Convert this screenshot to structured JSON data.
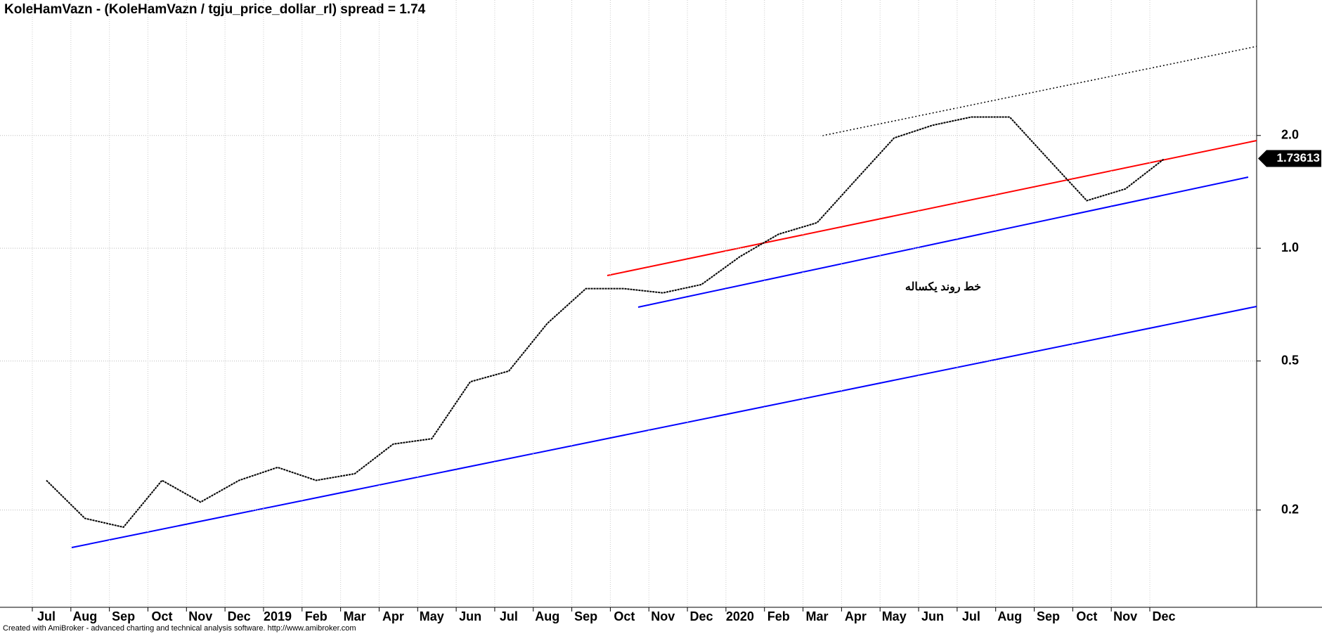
{
  "chart_data": {
    "type": "line",
    "title": "KoleHamVazn - (KoleHamVazn / tgju_price_dollar_rl) spread = 1.74",
    "footer": "Created with AmiBroker - advanced charting and technical analysis software. http://www.amibroker.com",
    "annotation": "خط روند یکساله",
    "categories": [
      "Jul",
      "Aug",
      "Sep",
      "Oct",
      "Nov",
      "Dec",
      "2019",
      "Feb",
      "Mar",
      "Apr",
      "May",
      "Jun",
      "Jul",
      "Aug",
      "Sep",
      "Oct",
      "Nov",
      "Dec",
      "2020",
      "Feb",
      "Mar",
      "Apr",
      "May",
      "Jun",
      "Jul",
      "Aug",
      "Sep",
      "Oct",
      "Nov",
      "Dec"
    ],
    "series": [
      {
        "name": "KoleHamVazn",
        "color": "#000000",
        "values": [
          0.24,
          0.19,
          0.18,
          0.24,
          0.21,
          0.24,
          0.26,
          0.24,
          0.25,
          0.3,
          0.31,
          0.44,
          0.47,
          0.63,
          0.78,
          0.78,
          0.76,
          0.8,
          0.95,
          1.09,
          1.17,
          1.52,
          1.97,
          2.13,
          2.24,
          2.24,
          1.73,
          1.34,
          1.44,
          1.73
        ]
      }
    ],
    "last_value": 1.73613,
    "ylim": [
      0.11,
      4.6
    ],
    "yticks": [
      {
        "value": 0.2,
        "label": "0.2"
      },
      {
        "value": 0.5,
        "label": "0.5"
      },
      {
        "value": 1,
        "label": "1.0"
      },
      {
        "value": 2,
        "label": "2.0"
      }
    ],
    "log_scale": true,
    "grid": true
  }
}
